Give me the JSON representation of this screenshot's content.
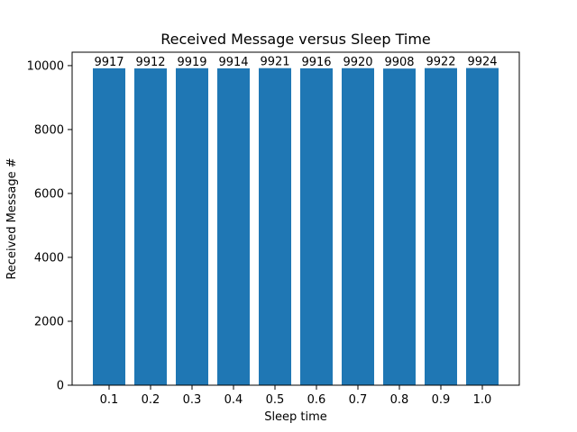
{
  "chart_data": {
    "type": "bar",
    "title": "Received Message versus Sleep Time",
    "xlabel": "Sleep time",
    "ylabel": "Received Message #",
    "categories": [
      "0.1",
      "0.2",
      "0.3",
      "0.4",
      "0.5",
      "0.6",
      "0.7",
      "0.8",
      "0.9",
      "1.0"
    ],
    "values": [
      9917,
      9912,
      9919,
      9914,
      9921,
      9916,
      9920,
      9908,
      9922,
      9924
    ],
    "data_labels": [
      "9917",
      "9912",
      "9919",
      "9914",
      "9921",
      "9916",
      "9920",
      "9908",
      "9922",
      "9924"
    ],
    "yticks": [
      0,
      2000,
      4000,
      6000,
      8000,
      10000
    ],
    "ylim": [
      0,
      10420
    ],
    "grid": false,
    "colors": {
      "bar": "#1f77b4",
      "axis": "#000000",
      "text": "#000000"
    }
  }
}
